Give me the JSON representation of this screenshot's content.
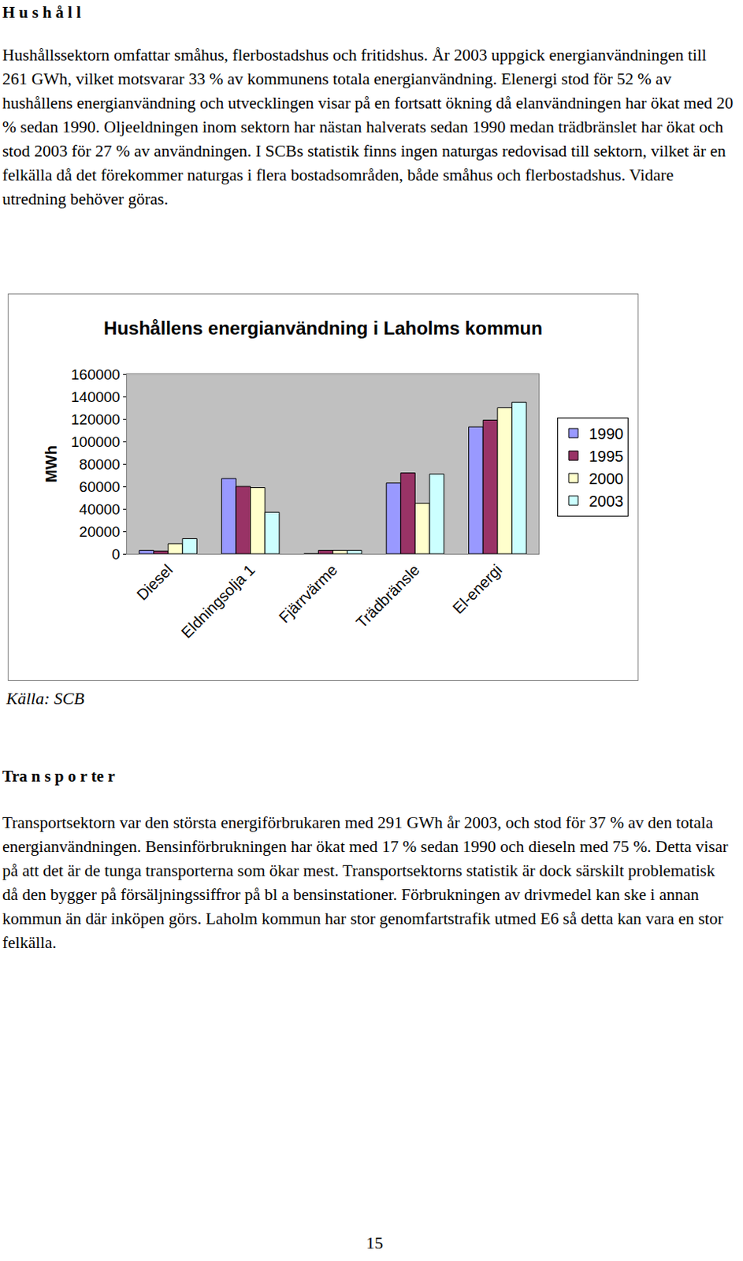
{
  "heading1": "H u s h å l l",
  "paragraph1": "Hushållssektorn omfattar småhus, flerbostadshus och fritidshus. År 2003 uppgick energianvändningen till 261 GWh, vilket motsvarar 33 % av kommunens totala energianvändning. Elenergi stod för 52 % av hushållens energianvändning och utvecklingen visar på en fortsatt ökning då elanvändningen har ökat med 20 % sedan 1990. Oljeeldningen inom sektorn har nästan halverats sedan 1990 medan trädbränslet har ökat och stod 2003 för 27 % av användningen. I SCBs statistik finns ingen naturgas redovisad till sektorn, vilket är en felkälla då det förekommer naturgas i flera bostadsområden, både småhus och flerbostadshus. Vidare utredning behöver göras.",
  "chart_data": {
    "type": "bar",
    "title": "Hushållens energianvändning i Laholms kommun",
    "y_label": "MWh",
    "categories": [
      "Diesel",
      "Eldningsolja 1",
      "Fjärrvärme",
      "Trädbränsle",
      "El-energi"
    ],
    "series": [
      {
        "name": "1990",
        "color": "#9999ff",
        "values": [
          3000,
          67000,
          0,
          63000,
          113000
        ]
      },
      {
        "name": "1995",
        "color": "#993366",
        "values": [
          2500,
          60000,
          3000,
          72000,
          119000
        ]
      },
      {
        "name": "2000",
        "color": "#ffffcc",
        "values": [
          9000,
          59000,
          3000,
          45000,
          130000
        ]
      },
      {
        "name": "2003",
        "color": "#ccffff",
        "values": [
          13500,
          37000,
          3000,
          71000,
          135000
        ]
      }
    ],
    "ylim": [
      0,
      160000
    ],
    "yticks": [
      0,
      20000,
      40000,
      60000,
      80000,
      100000,
      120000,
      140000,
      160000
    ],
    "grid": false,
    "legend": "right"
  },
  "source": "Källa: SCB",
  "heading2": "Tra n s p o r te r",
  "paragraph2": "Transportsektorn var den största energiförbrukaren med 291 GWh år 2003, och stod för 37 % av den totala energianvändningen. Bensinförbrukningen har ökat med 17 % sedan 1990 och dieseln med 75 %. Detta visar på att det är de tunga transporterna som ökar mest. Transportsektorns statistik är dock särskilt problematisk då den bygger på försäljningssiffror på bl a bensinstationer. Förbrukningen av drivmedel kan ske i annan kommun än där inköpen görs. Laholm kommun har stor genomfartstrafik utmed E6 så detta kan vara en stor felkälla.",
  "page_number": "15"
}
